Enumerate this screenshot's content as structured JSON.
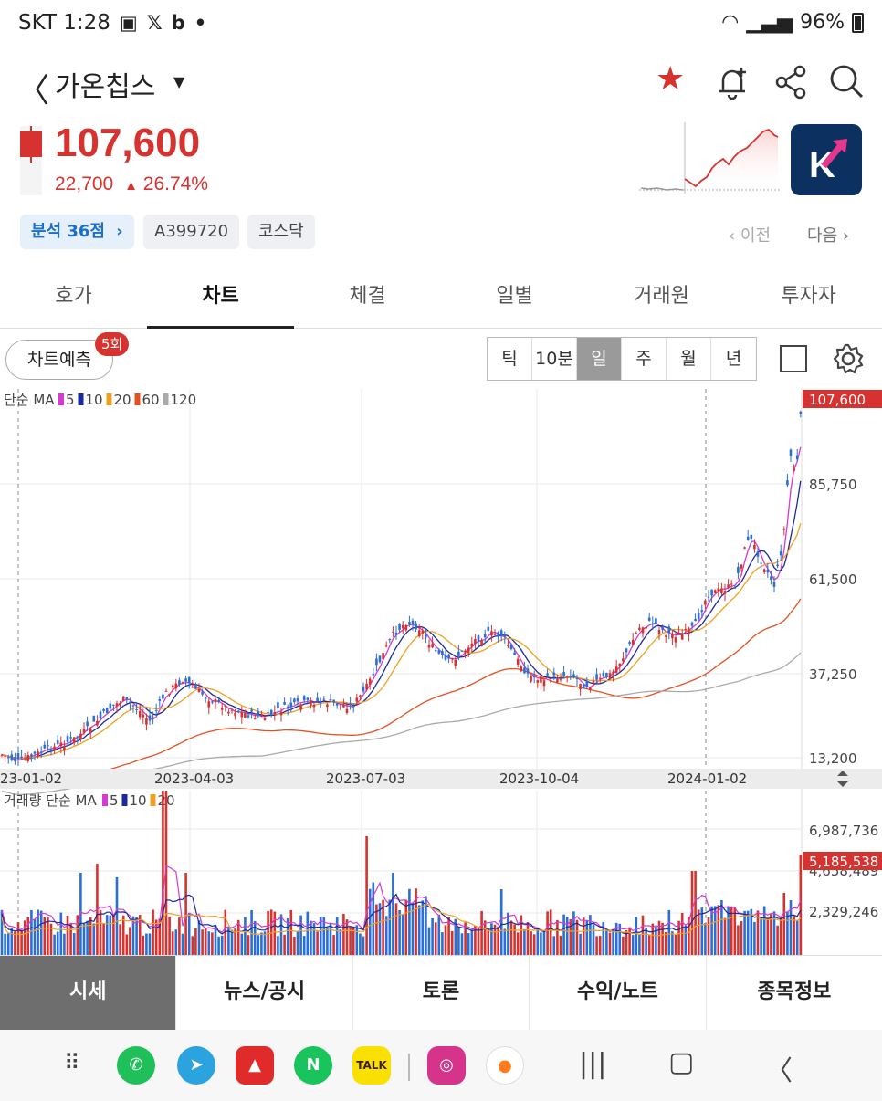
{
  "status_bar": {
    "carrier_time": "SKT 1:28",
    "notif_icons": [
      "gallery-icon",
      "x-icon",
      "b-icon",
      "dot"
    ],
    "battery": "96%"
  },
  "header": {
    "stock_name": "가온칩스",
    "icons": [
      "back-icon",
      "star-icon",
      "bell-plus-icon",
      "share-icon",
      "search-icon"
    ]
  },
  "price": {
    "current": "107,600",
    "change": "22,700",
    "change_pct": "26.74%",
    "color": "#d6322f"
  },
  "badges": {
    "analysis": "분석 36점",
    "code": "A399720",
    "market": "코스닥",
    "prev": "이전",
    "next": "다음"
  },
  "tabs": [
    {
      "label": "호가"
    },
    {
      "label": "차트"
    },
    {
      "label": "체결"
    },
    {
      "label": "일별"
    },
    {
      "label": "거래원"
    },
    {
      "label": "투자자"
    }
  ],
  "active_tab": "차트",
  "toolbar": {
    "predict_label": "차트예측",
    "predict_count": "5회",
    "periods": [
      "틱",
      "10분",
      "일",
      "주",
      "월",
      "년"
    ],
    "active_period": "일"
  },
  "chart_data": {
    "type": "candlestick",
    "price_legend": {
      "label": "단순 MA",
      "items": [
        "5",
        "10",
        "20",
        "60",
        "120"
      ],
      "colors": [
        "#d63ad0",
        "#1b2a9a",
        "#f0a020",
        "#e65020",
        "#aaaaaa"
      ]
    },
    "y_ticks": [
      "107,600",
      "85,750",
      "61,500",
      "37,250",
      "13,200"
    ],
    "ylim": [
      13200,
      107600
    ],
    "x_ticks": [
      "23-01-02",
      "2023-04-03",
      "2023-07-03",
      "2023-10-04",
      "2024-01-02"
    ],
    "volume_legend": {
      "label": "거래량 단순 MA",
      "items": [
        "5",
        "10",
        "20"
      ],
      "colors": [
        "#d63ad0",
        "#1b2a9a",
        "#f0a020"
      ]
    },
    "volume_ticks": [
      "6,987,736",
      "4,658,489",
      "2,329,246"
    ],
    "last_volume": "5,185,538",
    "last_price": "107,600"
  },
  "bottom_tabs": [
    {
      "label": "시세"
    },
    {
      "label": "뉴스/공시"
    },
    {
      "label": "토론"
    },
    {
      "label": "수익/노트"
    },
    {
      "label": "종목정보"
    }
  ],
  "nav": {
    "apps": [
      "grid-icon",
      "phone-icon",
      "telegram-icon",
      "stock-app-icon",
      "naver-icon",
      "kakaotalk-icon",
      "instagram-icon",
      "carrot-icon"
    ],
    "kakao_label": "TALK",
    "naver_label": "N",
    "buttons": [
      "recents-icon",
      "home-icon",
      "back-icon"
    ]
  }
}
